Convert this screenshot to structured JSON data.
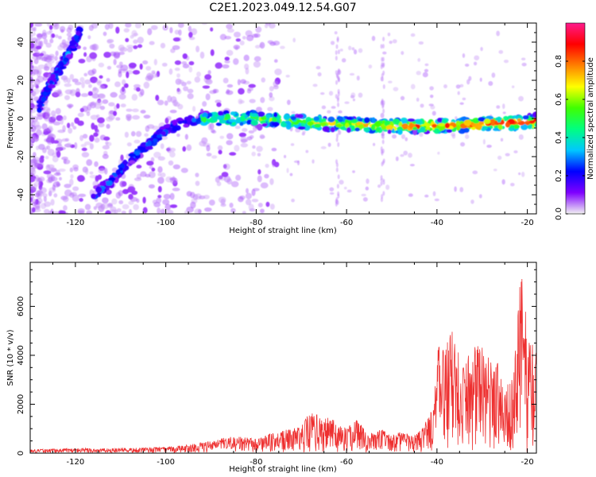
{
  "figure": {
    "title": "C2E1.2023.049.12.54.G07"
  },
  "colorbar": {
    "label": "Normalized spectral amplitude",
    "ticks": [
      "0.0",
      "0.2",
      "0.4",
      "0.6",
      "0.8"
    ],
    "stops": [
      "#f2f2f2",
      "#7f00ff",
      "#0000ff",
      "#00c8ff",
      "#00ff80",
      "#40ff00",
      "#ffff00",
      "#ff8000",
      "#ff0000",
      "#ff1a8c"
    ]
  },
  "chart_data": [
    {
      "type": "heatmap",
      "xlabel": "Height of straight line (km)",
      "ylabel": "Frequency (Hz)",
      "xlim": [
        -130,
        -18
      ],
      "ylim": [
        -50,
        50
      ],
      "xticks": [
        -120,
        -100,
        -80,
        -60,
        -40,
        -20
      ],
      "yticks": [
        -40,
        -20,
        0,
        20,
        40
      ],
      "features": [
        {
          "name": "upper branch",
          "x": [
            -128,
            -126,
            -124,
            -122,
            -120,
            -119
          ],
          "y": [
            6,
            16,
            24,
            32,
            40,
            46
          ]
        },
        {
          "name": "rising branch",
          "x": [
            -116,
            -112,
            -108,
            -104,
            -100,
            -96,
            -92
          ],
          "y": [
            -40,
            -33,
            -22,
            -14,
            -6,
            -2,
            0
          ]
        },
        {
          "name": "main ridge",
          "x": [
            -92,
            -80,
            -70,
            -60,
            -50,
            -40,
            -30,
            -20,
            -18
          ],
          "y": [
            0,
            0,
            -2,
            -3,
            -4,
            -4,
            -3,
            -2,
            -1
          ]
        }
      ]
    },
    {
      "type": "line",
      "xlabel": "Height of straight line (km)",
      "ylabel": "SNR (10 * v/v)",
      "xlim": [
        -130,
        -18
      ],
      "ylim": [
        0,
        7800
      ],
      "xticks": [
        -120,
        -100,
        -80,
        -60,
        -40,
        -20
      ],
      "yticks": [
        0,
        2000,
        4000,
        6000
      ],
      "series": [
        {
          "color": "#ee3030",
          "envelope_x": [
            -130,
            -120,
            -110,
            -100,
            -95,
            -90,
            -88,
            -85,
            -80,
            -75,
            -72,
            -70,
            -68,
            -65,
            -62,
            -60,
            -58,
            -55,
            -52,
            -50,
            -48,
            -45,
            -43,
            -41,
            -40,
            -38,
            -36,
            -34,
            -32,
            -30,
            -28,
            -26,
            -25,
            -24,
            -23,
            -22,
            -21,
            -20,
            -19,
            -18
          ],
          "envelope_y": [
            150,
            200,
            200,
            250,
            350,
            500,
            600,
            700,
            600,
            900,
            1000,
            1200,
            1700,
            1500,
            1300,
            1000,
            1500,
            800,
            1000,
            700,
            900,
            700,
            1100,
            2000,
            4200,
            4800,
            5200,
            3800,
            4300,
            4500,
            3800,
            4000,
            2500,
            3000,
            3200,
            7500,
            7200,
            5000,
            4800,
            4300
          ]
        }
      ]
    }
  ]
}
